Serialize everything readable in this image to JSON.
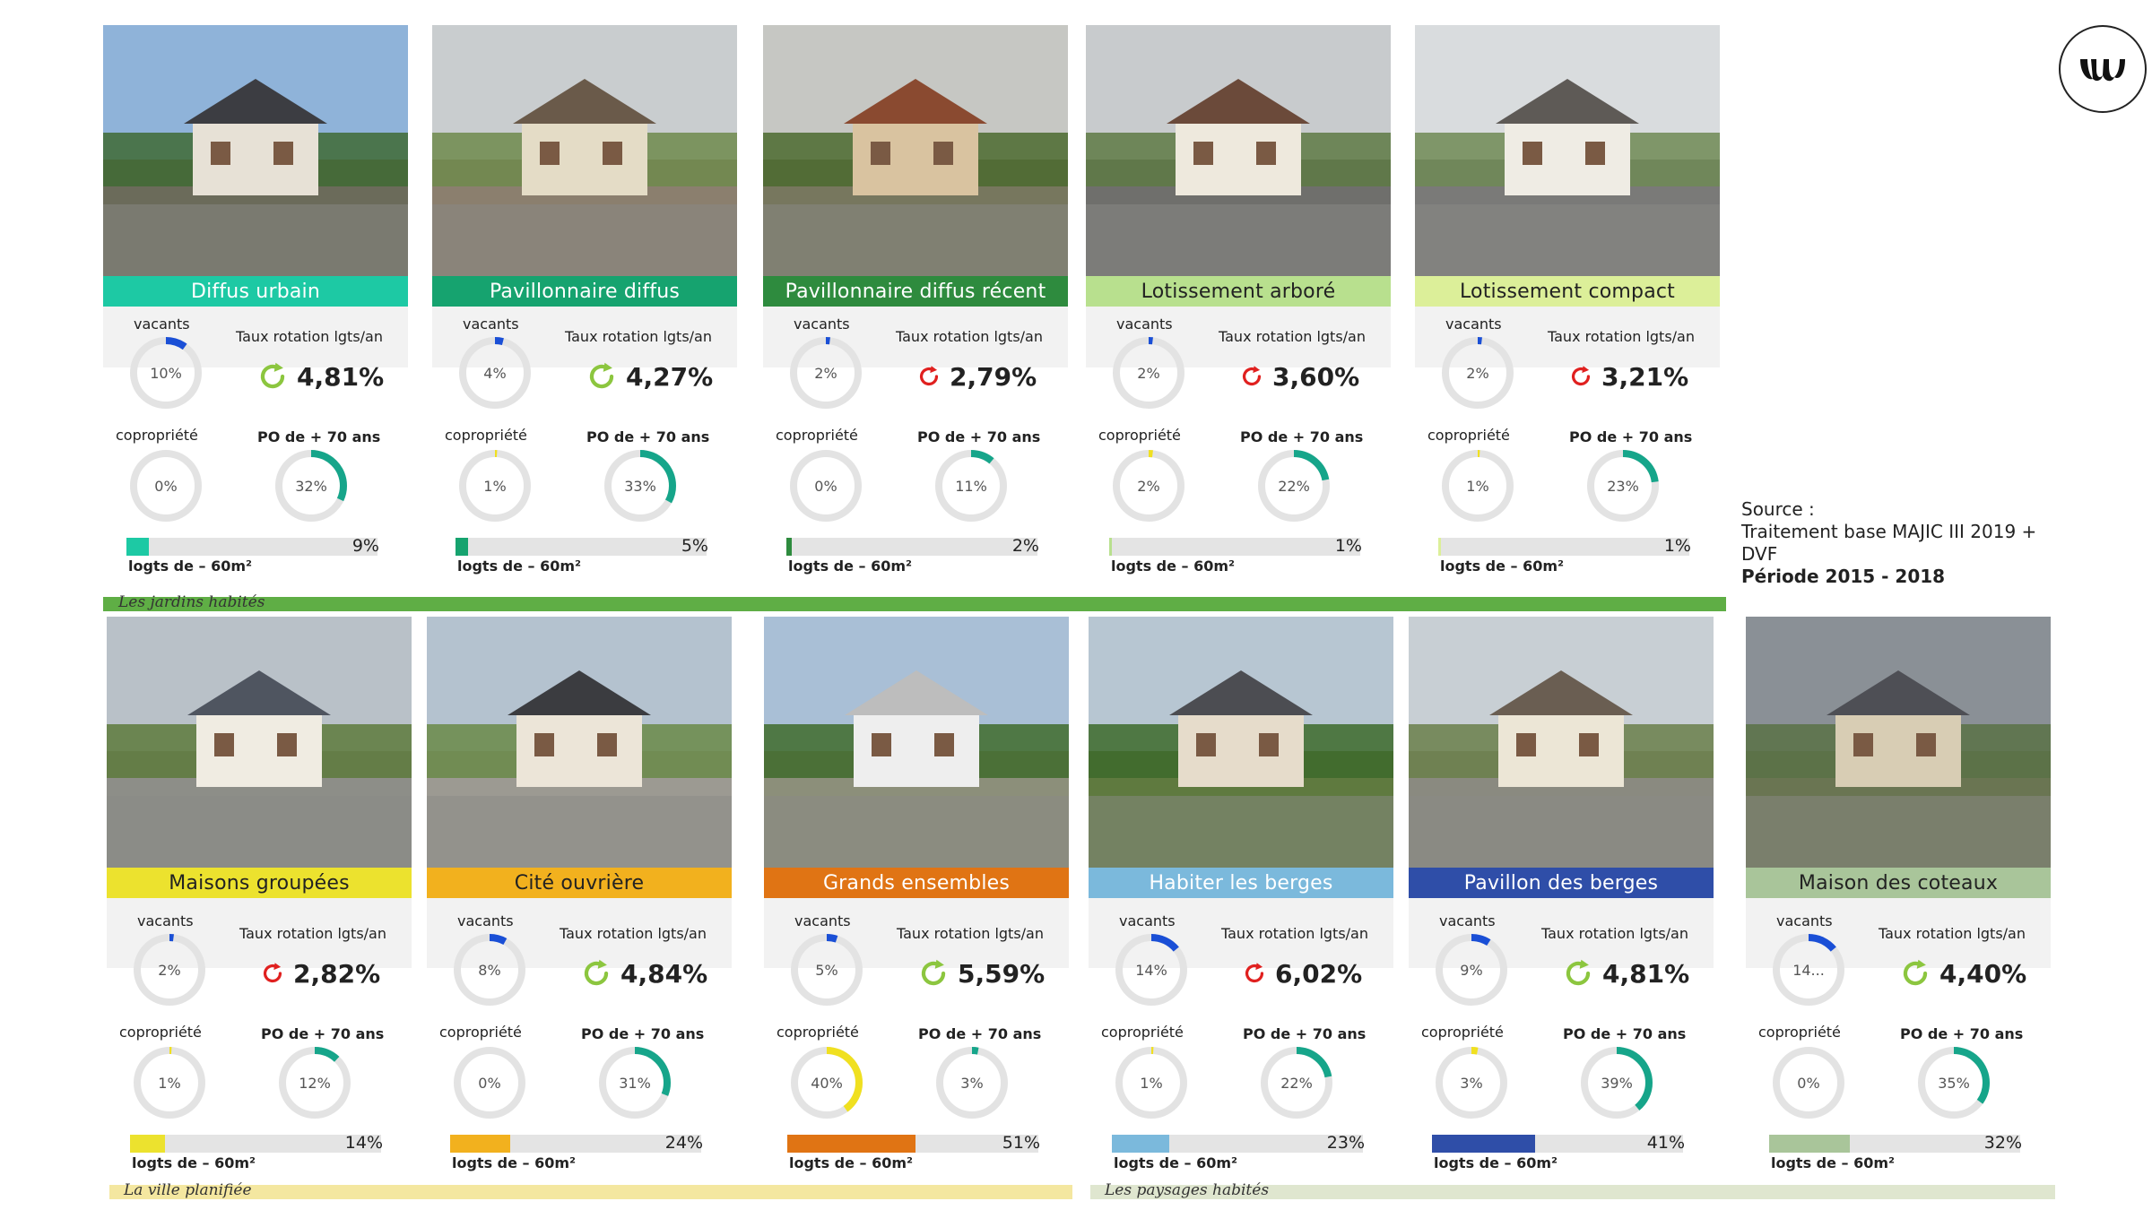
{
  "labels": {
    "vacants": "vacants",
    "rotation": "Taux rotation lgts/an",
    "copro": "copropriété",
    "po70": "PO de + 70 ans",
    "logts": "logts de – 60m²"
  },
  "source": {
    "line1": "Source :",
    "line2": "Traitement base MAJIC III 2019 +",
    "line3": "DVF",
    "line4": "Période 2015 - 2018"
  },
  "sections": [
    {
      "label": "Les jardins habités",
      "color": "#5fae45"
    },
    {
      "label": "La ville planifiée",
      "color": "#f4e7a0"
    },
    {
      "label": "Les paysages habités",
      "color": "#dfe6cf"
    }
  ],
  "cards": [
    {
      "title": "Diffus urbain",
      "color": "#1dc9a4",
      "text_color": "#ffffff",
      "vacants": "10%",
      "vacants_v": 0.1,
      "rotation": "4,81%",
      "rotation_icon": "green-rotation-icon",
      "copro": "0%",
      "copro_v": 0.0,
      "po70": "32%",
      "po70_v": 0.32,
      "logts": "9%",
      "logts_v": 0.09
    },
    {
      "title": "Pavillonnaire diffus",
      "color": "#16a36f",
      "text_color": "#ffffff",
      "vacants": "4%",
      "vacants_v": 0.04,
      "rotation": "4,27%",
      "rotation_icon": "green-rotation-icon",
      "copro": "1%",
      "copro_v": 0.01,
      "po70": "33%",
      "po70_v": 0.33,
      "logts": "5%",
      "logts_v": 0.05
    },
    {
      "title": "Pavillonnaire diffus récent",
      "color": "#2e8b3e",
      "text_color": "#ffffff",
      "vacants": "2%",
      "vacants_v": 0.02,
      "rotation": "2,79%",
      "rotation_icon": "red-rotation-icon",
      "copro": "0%",
      "copro_v": 0.0,
      "po70": "11%",
      "po70_v": 0.11,
      "logts": "2%",
      "logts_v": 0.02
    },
    {
      "title": "Lotissement arboré",
      "color": "#b8e08e",
      "text_color": "#222222",
      "vacants": "2%",
      "vacants_v": 0.02,
      "rotation": "3,60%",
      "rotation_icon": "red-rotation-icon",
      "copro": "2%",
      "copro_v": 0.02,
      "po70": "22%",
      "po70_v": 0.22,
      "logts": "1%",
      "logts_v": 0.01
    },
    {
      "title": "Lotissement compact",
      "color": "#dcef99",
      "text_color": "#222222",
      "vacants": "2%",
      "vacants_v": 0.02,
      "rotation": "3,21%",
      "rotation_icon": "red-rotation-icon",
      "copro": "1%",
      "copro_v": 0.01,
      "po70": "23%",
      "po70_v": 0.23,
      "logts": "1%",
      "logts_v": 0.01
    },
    {
      "title": "Maisons groupées",
      "color": "#ece22e",
      "text_color": "#222222",
      "vacants": "2%",
      "vacants_v": 0.02,
      "rotation": "2,82%",
      "rotation_icon": "red-rotation-icon",
      "copro": "1%",
      "copro_v": 0.01,
      "po70": "12%",
      "po70_v": 0.12,
      "logts": "14%",
      "logts_v": 0.14
    },
    {
      "title": "Cité ouvrière",
      "color": "#f2b11e",
      "text_color": "#222222",
      "vacants": "8%",
      "vacants_v": 0.08,
      "rotation": "4,84%",
      "rotation_icon": "green-rotation-icon",
      "copro": "0%",
      "copro_v": 0.0,
      "po70": "31%",
      "po70_v": 0.31,
      "logts": "24%",
      "logts_v": 0.24
    },
    {
      "title": "Grands ensembles",
      "color": "#e07414",
      "text_color": "#ffffff",
      "vacants": "5%",
      "vacants_v": 0.05,
      "rotation": "5,59%",
      "rotation_icon": "green-rotation-icon",
      "copro": "40%",
      "copro_v": 0.4,
      "po70": "3%",
      "po70_v": 0.03,
      "logts": "51%",
      "logts_v": 0.51
    },
    {
      "title": "Habiter les berges",
      "color": "#7bb9dc",
      "text_color": "#ffffff",
      "vacants": "14%",
      "vacants_v": 0.14,
      "rotation": "6,02%",
      "rotation_icon": "red-rotation-icon",
      "copro": "1%",
      "copro_v": 0.01,
      "po70": "22%",
      "po70_v": 0.22,
      "logts": "23%",
      "logts_v": 0.23
    },
    {
      "title": "Pavillon des berges",
      "color": "#2f4ea8",
      "text_color": "#ffffff",
      "vacants": "9%",
      "vacants_v": 0.09,
      "rotation": "4,81%",
      "rotation_icon": "green-rotation-icon",
      "copro": "3%",
      "copro_v": 0.03,
      "po70": "39%",
      "po70_v": 0.39,
      "logts": "41%",
      "logts_v": 0.41
    },
    {
      "title": "Maison des coteaux",
      "color": "#a9c59a",
      "text_color": "#222222",
      "vacants": "14...",
      "vacants_v": 0.14,
      "rotation": "4,40%",
      "rotation_icon": "green-rotation-icon",
      "copro": "0%",
      "copro_v": 0.0,
      "po70": "35%",
      "po70_v": 0.35,
      "logts": "32%",
      "logts_v": 0.32
    }
  ]
}
